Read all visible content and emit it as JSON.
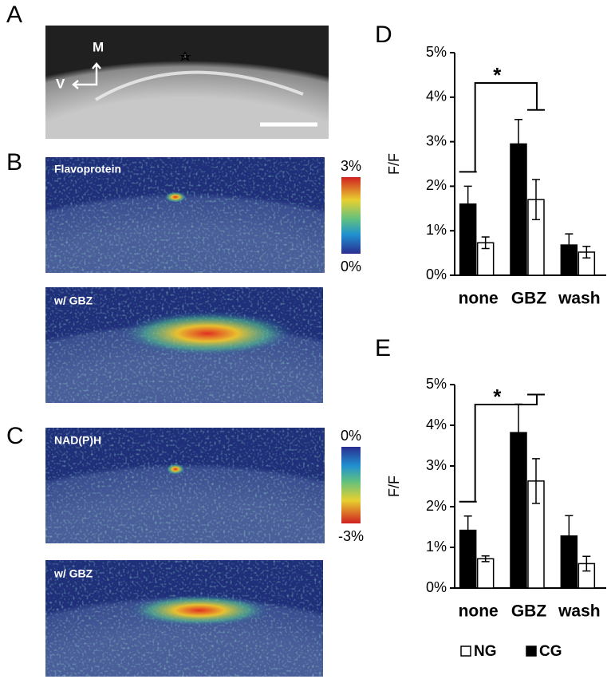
{
  "panels": {
    "letters": [
      "A",
      "B",
      "C",
      "D",
      "E"
    ],
    "orientation": [
      "M",
      "V"
    ],
    "image_labels": [
      "Flavoprotein",
      "w/ GBZ",
      "NAD(P)H",
      "w/ GBZ"
    ],
    "colorbar_b": [
      "3%",
      "0%"
    ],
    "colorbar_c": [
      "0%",
      "-3%"
    ]
  },
  "chart_data": [
    {
      "type": "bar",
      "categories": [
        "none",
        "GBZ",
        "wash"
      ],
      "ylabel": "F/F",
      "annotation": "*",
      "series": [
        {
          "name": "CG",
          "color": "#000000",
          "values": [
            1.6,
            2.95,
            0.68
          ],
          "errors": [
            0.4,
            0.55,
            0.25
          ]
        },
        {
          "name": "NG",
          "color": "#ffffff",
          "values": [
            0.73,
            1.7,
            0.52
          ],
          "errors": [
            0.13,
            0.45,
            0.13
          ]
        }
      ],
      "ylim": [
        0,
        5
      ],
      "yticks": [
        {
          "value": 0,
          "label": "0%"
        },
        {
          "value": 1,
          "label": "1%"
        },
        {
          "value": 2,
          "label": "2%"
        },
        {
          "value": 3,
          "label": "3%"
        },
        {
          "value": 4,
          "label": "4%"
        },
        {
          "value": 5,
          "label": "5%"
        }
      ]
    },
    {
      "type": "bar",
      "categories": [
        "none",
        "GBZ",
        "wash"
      ],
      "ylabel": "F/F",
      "annotation": "*",
      "series": [
        {
          "name": "CG",
          "color": "#000000",
          "values": [
            1.42,
            3.82,
            1.28
          ],
          "errors": [
            0.35,
            0.7,
            0.5
          ]
        },
        {
          "name": "NG",
          "color": "#ffffff",
          "values": [
            0.72,
            2.63,
            0.6
          ],
          "errors": [
            0.07,
            0.55,
            0.18
          ]
        }
      ],
      "ylim": [
        0,
        5
      ],
      "yticks": [
        {
          "value": 0,
          "label": "0%"
        },
        {
          "value": 1,
          "label": "1%"
        },
        {
          "value": 2,
          "label": "2%"
        },
        {
          "value": 3,
          "label": "3%"
        },
        {
          "value": 4,
          "label": "4%"
        },
        {
          "value": 5,
          "label": "5%"
        }
      ]
    }
  ]
}
